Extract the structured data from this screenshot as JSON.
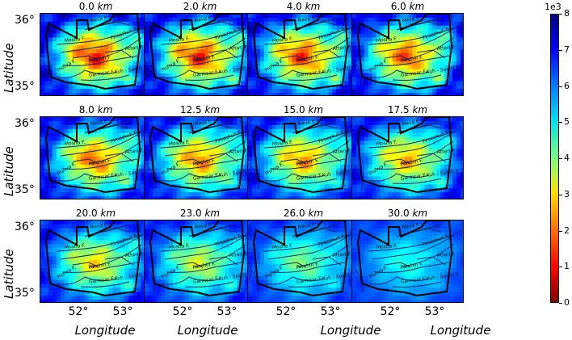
{
  "panels": [
    {
      "depth": "0.0",
      "unit": "km",
      "level": 1.0
    },
    {
      "depth": "2.0",
      "unit": "km",
      "level": 0.98
    },
    {
      "depth": "4.0",
      "unit": "km",
      "level": 0.95
    },
    {
      "depth": "6.0",
      "unit": "km",
      "level": 0.92
    },
    {
      "depth": "8.0",
      "unit": "km",
      "level": 0.88
    },
    {
      "depth": "12.5",
      "unit": "km",
      "level": 0.84
    },
    {
      "depth": "15.0",
      "unit": "km",
      "level": 0.8
    },
    {
      "depth": "17.5",
      "unit": "km",
      "level": 0.76
    },
    {
      "depth": "20.0",
      "unit": "km",
      "level": 0.68
    },
    {
      "depth": "23.0",
      "unit": "km",
      "level": 0.58
    },
    {
      "depth": "26.0",
      "unit": "km",
      "level": 0.45
    },
    {
      "depth": "30.0",
      "unit": "km",
      "level": 0.3
    }
  ],
  "fault_labels": [
    "Nava F.",
    "Mosha F.",
    "Firoozkuh F.",
    "Attari F.",
    "Parchin F.",
    "Pishva F.",
    "Garmsar F.",
    "Kuh - Sorkh F."
  ],
  "axes": {
    "ylabel": "Latitude",
    "xlabel": "Longitude",
    "yticks": [
      "36°",
      "35°"
    ],
    "xticks": [
      "52°",
      "53°"
    ]
  },
  "colorbar": {
    "exponent": "1e3",
    "ticks": [
      "8",
      "7",
      "6",
      "5",
      "4",
      "3",
      "2",
      "1",
      "0"
    ],
    "colormap": "jet",
    "range": [
      0,
      8
    ]
  }
}
